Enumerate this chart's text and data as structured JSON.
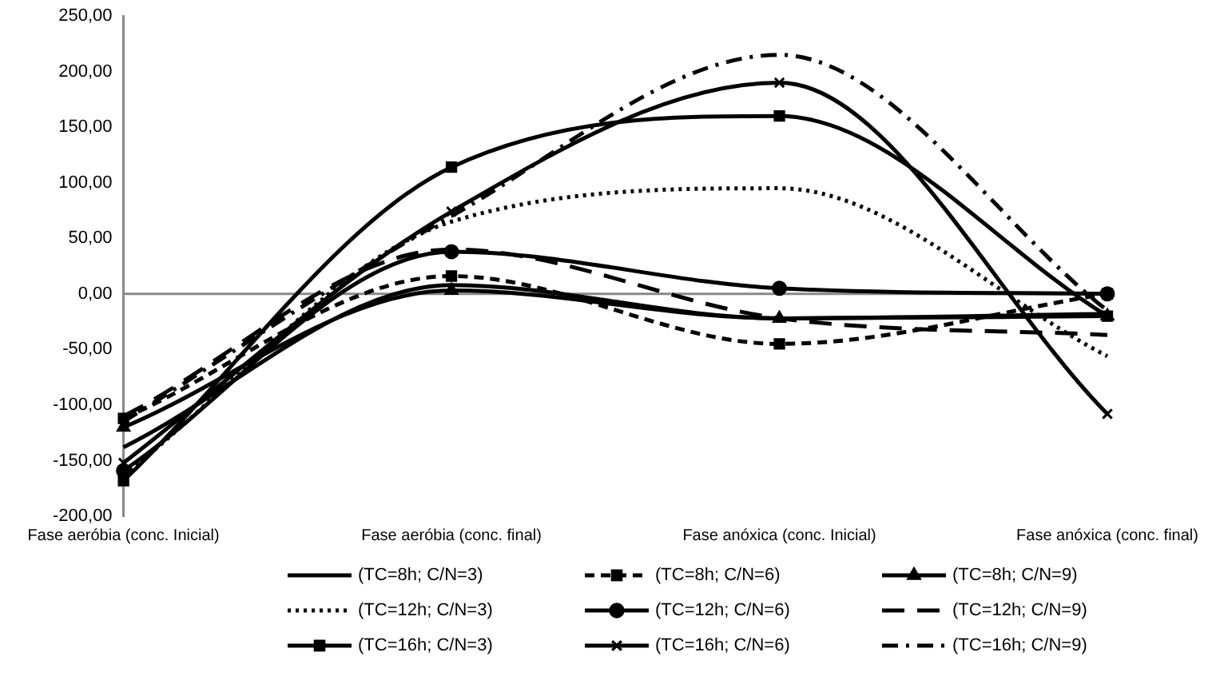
{
  "chart_data": {
    "type": "line",
    "categories": [
      "Fase aeróbia (conc. Inicial)",
      "Fase aeróbia (conc. final)",
      "Fase anóxica (conc. Inicial)",
      "Fase anóxica (conc. final)"
    ],
    "series": [
      {
        "name": "(TC=8h; C/N=3)",
        "color": "#000000",
        "marker": "none",
        "line_style": "solid",
        "values": [
          -138,
          8,
          -22,
          -18
        ]
      },
      {
        "name": "(TC=8h; C/N=6)",
        "color": "#000000",
        "marker": "square",
        "line_style": "dashed",
        "values": [
          -112,
          16,
          -45,
          0
        ]
      },
      {
        "name": "(TC=8h; C/N=9)",
        "color": "#000000",
        "marker": "triangle",
        "line_style": "solid",
        "values": [
          -120,
          3,
          -22,
          -20
        ]
      },
      {
        "name": "(TC=12h; C/N=3)",
        "color": "#000000",
        "marker": "none",
        "line_style": "dotted",
        "values": [
          -163,
          65,
          95,
          -56
        ]
      },
      {
        "name": "(TC=12h; C/N=6)",
        "color": "#000000",
        "marker": "circle",
        "line_style": "solid",
        "values": [
          -159,
          38,
          5,
          0
        ]
      },
      {
        "name": "(TC=12h; C/N=9)",
        "color": "#000000",
        "marker": "none",
        "line_style": "longdash",
        "values": [
          -110,
          40,
          -22,
          -37
        ]
      },
      {
        "name": "(TC=16h; C/N=3)",
        "color": "#000000",
        "marker": "square",
        "line_style": "solid",
        "values": [
          -168,
          114,
          160,
          -20
        ]
      },
      {
        "name": "(TC=16h; C/N=6)",
        "color": "#000000",
        "marker": "cross",
        "line_style": "solid",
        "values": [
          -152,
          74,
          190,
          -108
        ]
      },
      {
        "name": "(TC=16h; C/N=9)",
        "color": "#000000",
        "marker": "none",
        "line_style": "dashdot",
        "values": [
          -115,
          70,
          215,
          -15
        ]
      }
    ],
    "ylim": [
      -200,
      250
    ],
    "yticks": [
      {
        "value": -200,
        "label": "-200,00"
      },
      {
        "value": -150,
        "label": "-150,00"
      },
      {
        "value": -100,
        "label": "-100,00"
      },
      {
        "value": -50,
        "label": "-50,00"
      },
      {
        "value": 0,
        "label": "0,00"
      },
      {
        "value": 50,
        "label": "50,00"
      },
      {
        "value": 100,
        "label": "100,00"
      },
      {
        "value": 150,
        "label": "150,00"
      },
      {
        "value": 200,
        "label": "200,00"
      },
      {
        "value": 250,
        "label": "250,00"
      }
    ],
    "ref_lines": [
      {
        "axis": "y",
        "value": 0,
        "color": "#888888"
      }
    ],
    "legend": "bottom"
  }
}
